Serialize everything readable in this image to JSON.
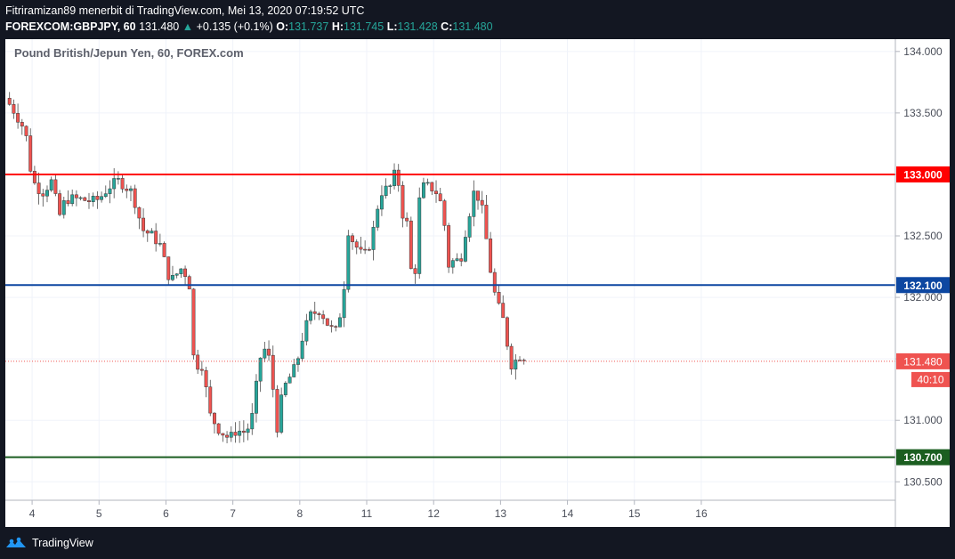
{
  "header": {
    "publisher_line": "Fitriramizan89 menerbit di TradingView.com, Mei 13, 2020 07:19:52 UTC",
    "symbol_interval": "FOREXCOM:GBPJPY, 60",
    "last_price": "131.480",
    "change_arrow": "▲",
    "change": "+0.135 (+0.1%)",
    "o_label": "O:",
    "o_value": "131.737",
    "h_label": "H:",
    "h_value": "131.745",
    "l_label": "L:",
    "l_value": "131.428",
    "c_label": "C:",
    "c_value": "131.480"
  },
  "chart_data": {
    "type": "candlestick",
    "title": "Pound British/Jepun Yen, 60, FOREX.com",
    "xlabel": "",
    "ylabel": "",
    "ylim": [
      130.35,
      134.1
    ],
    "y_ticks": [
      134.0,
      133.5,
      133.0,
      132.5,
      132.0,
      131.5,
      131.0,
      130.5
    ],
    "y_tick_labels": [
      "134.000",
      "133.500",
      "133.000",
      "132.500",
      "132.000",
      "131.500",
      "131.000",
      "130.500"
    ],
    "x_range": [
      3.6,
      16.9
    ],
    "x_ticks": [
      4,
      5,
      6,
      7,
      8,
      11,
      12,
      13,
      14,
      15,
      16
    ],
    "x_tick_labels": [
      "4",
      "5",
      "6",
      "7",
      "8",
      "11",
      "12",
      "13",
      "14",
      "15",
      "16"
    ],
    "x_tick_positions": [
      4,
      5,
      6,
      7,
      8,
      9,
      10,
      11,
      12,
      13,
      14
    ],
    "horizontal_lines": [
      {
        "value": 133.0,
        "label": "133.000",
        "color": "#ff0000"
      },
      {
        "value": 132.1,
        "label": "132.100",
        "color": "#0d47a1"
      },
      {
        "value": 130.7,
        "label": "130.700",
        "color": "#1b5e20"
      }
    ],
    "current_price": {
      "value": 131.48,
      "label": "131.480",
      "countdown": "40:10",
      "color": "#ef5350"
    },
    "close_path": [
      [
        3.6,
        133.62
      ],
      [
        3.75,
        133.5
      ],
      [
        3.9,
        133.35
      ],
      [
        4.0,
        132.95
      ],
      [
        4.15,
        132.85
      ],
      [
        4.3,
        132.95
      ],
      [
        4.4,
        132.65
      ],
      [
        4.5,
        132.8
      ],
      [
        4.7,
        132.8
      ],
      [
        4.9,
        132.78
      ],
      [
        5.0,
        132.8
      ],
      [
        5.15,
        132.9
      ],
      [
        5.3,
        132.95
      ],
      [
        5.5,
        132.85
      ],
      [
        5.65,
        132.55
      ],
      [
        5.8,
        132.5
      ],
      [
        5.95,
        132.4
      ],
      [
        6.0,
        132.2
      ],
      [
        6.1,
        132.15
      ],
      [
        6.25,
        132.25
      ],
      [
        6.35,
        132.1
      ],
      [
        6.42,
        131.45
      ],
      [
        6.55,
        131.45
      ],
      [
        6.65,
        131.05
      ],
      [
        6.8,
        130.92
      ],
      [
        6.95,
        130.85
      ],
      [
        7.05,
        130.92
      ],
      [
        7.2,
        130.9
      ],
      [
        7.3,
        131.05
      ],
      [
        7.4,
        131.5
      ],
      [
        7.5,
        131.6
      ],
      [
        7.58,
        131.4
      ],
      [
        7.65,
        130.9
      ],
      [
        7.75,
        131.25
      ],
      [
        7.85,
        131.35
      ],
      [
        7.95,
        131.45
      ],
      [
        8.05,
        131.7
      ],
      [
        8.15,
        131.85
      ],
      [
        8.3,
        131.9
      ],
      [
        8.45,
        131.75
      ],
      [
        8.55,
        131.72
      ],
      [
        8.65,
        132.0
      ],
      [
        8.72,
        132.55
      ],
      [
        8.8,
        132.45
      ],
      [
        8.92,
        132.35
      ],
      [
        9.0,
        132.35
      ],
      [
        9.1,
        132.55
      ],
      [
        9.2,
        132.85
      ],
      [
        9.35,
        132.9
      ],
      [
        9.45,
        133.05
      ],
      [
        9.52,
        132.7
      ],
      [
        9.6,
        132.6
      ],
      [
        9.7,
        132.0
      ],
      [
        9.8,
        132.9
      ],
      [
        9.95,
        132.9
      ],
      [
        10.05,
        132.85
      ],
      [
        10.15,
        132.7
      ],
      [
        10.2,
        132.25
      ],
      [
        10.3,
        132.3
      ],
      [
        10.4,
        132.3
      ],
      [
        10.48,
        132.55
      ],
      [
        10.6,
        132.85
      ],
      [
        10.7,
        132.8
      ],
      [
        10.78,
        132.5
      ],
      [
        10.88,
        132.1
      ],
      [
        10.95,
        131.95
      ],
      [
        11.05,
        131.8
      ],
      [
        11.15,
        131.45
      ],
      [
        11.25,
        131.5
      ],
      [
        11.32,
        131.55
      ],
      [
        11.38,
        131.48
      ]
    ]
  },
  "footer": {
    "brand": "TradingView"
  }
}
